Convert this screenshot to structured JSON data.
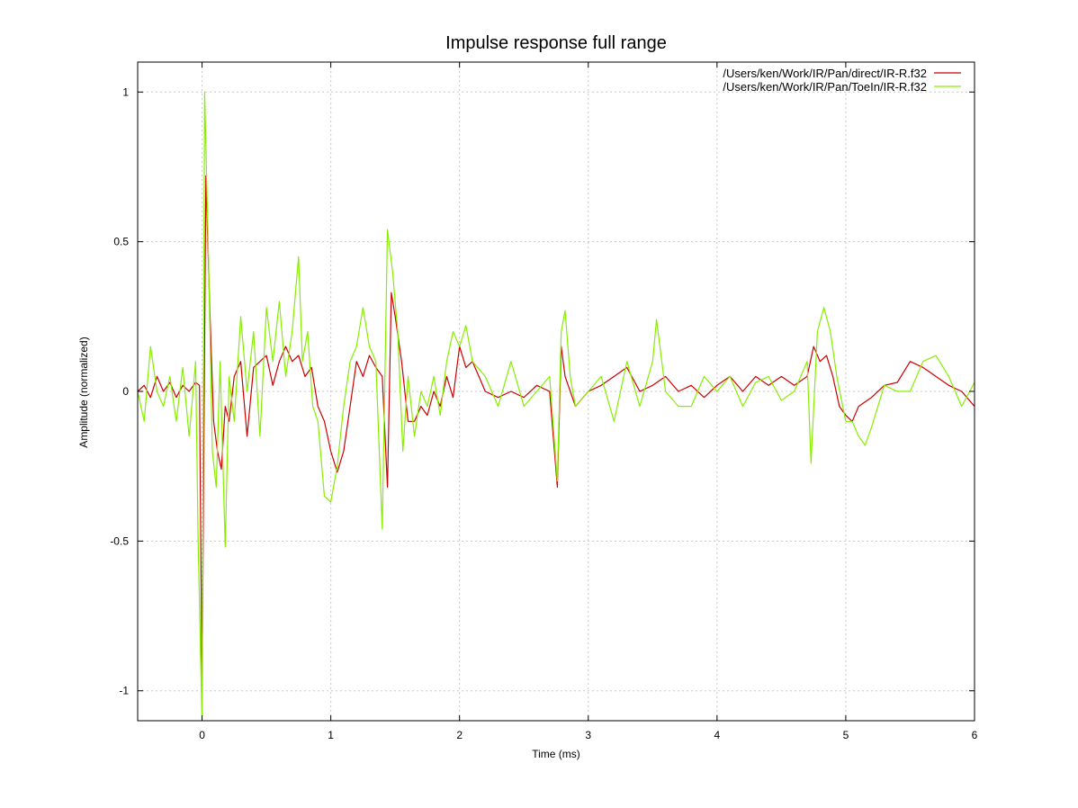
{
  "chart_data": {
    "type": "line",
    "title": "Impulse response full range",
    "xlabel": "Time (ms)",
    "ylabel": "Amplitude (normalized)",
    "xlim": [
      -0.5,
      6
    ],
    "ylim": [
      -1.1,
      1.1
    ],
    "grid": true,
    "legend_position": "top-right",
    "x_ticks": [
      0,
      1,
      2,
      3,
      4,
      5,
      6
    ],
    "y_ticks": [
      1,
      0.5,
      0,
      -0.5,
      -1
    ],
    "series": [
      {
        "name": "/Users/ken/Work/IR/Pan/direct/IR-R.f32",
        "color": "#cc0000",
        "x": [
          -0.5,
          -0.45,
          -0.4,
          -0.35,
          -0.3,
          -0.25,
          -0.2,
          -0.15,
          -0.1,
          -0.05,
          -0.02,
          0.0,
          0.03,
          0.06,
          0.09,
          0.12,
          0.15,
          0.18,
          0.21,
          0.25,
          0.3,
          0.35,
          0.4,
          0.45,
          0.5,
          0.55,
          0.6,
          0.65,
          0.7,
          0.75,
          0.8,
          0.85,
          0.9,
          0.95,
          1.0,
          1.05,
          1.1,
          1.15,
          1.2,
          1.25,
          1.3,
          1.35,
          1.4,
          1.44,
          1.47,
          1.5,
          1.55,
          1.6,
          1.65,
          1.7,
          1.75,
          1.8,
          1.85,
          1.9,
          1.95,
          2.0,
          2.05,
          2.1,
          2.15,
          2.2,
          2.3,
          2.4,
          2.5,
          2.6,
          2.7,
          2.76,
          2.79,
          2.82,
          2.9,
          3.0,
          3.1,
          3.2,
          3.3,
          3.4,
          3.5,
          3.6,
          3.7,
          3.8,
          3.9,
          4.0,
          4.1,
          4.2,
          4.3,
          4.4,
          4.5,
          4.6,
          4.7,
          4.75,
          4.8,
          4.85,
          4.9,
          4.95,
          5.0,
          5.05,
          5.1,
          5.2,
          5.3,
          5.4,
          5.5,
          5.6,
          5.7,
          5.8,
          5.9,
          6.0
        ],
        "y": [
          0.0,
          0.02,
          -0.02,
          0.05,
          0.0,
          0.03,
          -0.02,
          0.02,
          0.0,
          0.03,
          0.02,
          -1.0,
          0.72,
          0.28,
          -0.1,
          -0.2,
          -0.26,
          -0.05,
          -0.1,
          0.05,
          0.1,
          -0.15,
          0.08,
          0.1,
          0.12,
          0.02,
          0.1,
          0.15,
          0.1,
          0.12,
          0.05,
          0.08,
          -0.05,
          -0.1,
          -0.2,
          -0.27,
          -0.2,
          -0.05,
          0.1,
          0.05,
          0.12,
          0.08,
          0.05,
          -0.32,
          0.33,
          0.25,
          0.1,
          -0.1,
          -0.1,
          -0.05,
          -0.08,
          0.0,
          -0.05,
          0.05,
          -0.02,
          0.15,
          0.08,
          0.1,
          0.05,
          0.0,
          -0.02,
          0.0,
          -0.02,
          0.02,
          0.0,
          -0.32,
          0.15,
          0.05,
          -0.05,
          0.0,
          0.02,
          0.05,
          0.08,
          0.0,
          0.02,
          0.05,
          0.0,
          0.02,
          -0.02,
          0.02,
          0.05,
          0.0,
          0.05,
          0.02,
          0.05,
          0.02,
          0.05,
          0.15,
          0.1,
          0.12,
          0.05,
          -0.05,
          -0.08,
          -0.1,
          -0.05,
          -0.02,
          0.02,
          0.03,
          0.1,
          0.08,
          0.05,
          0.02,
          0.0,
          -0.05
        ]
      },
      {
        "name": "/Users/ken/Work/IR/Pan/ToeIn/IR-R.f32",
        "color": "#88ee00",
        "x": [
          -0.5,
          -0.45,
          -0.4,
          -0.35,
          -0.3,
          -0.25,
          -0.2,
          -0.15,
          -0.1,
          -0.05,
          -0.03,
          0.0,
          0.02,
          0.05,
          0.08,
          0.11,
          0.14,
          0.18,
          0.21,
          0.25,
          0.3,
          0.35,
          0.4,
          0.45,
          0.5,
          0.55,
          0.6,
          0.65,
          0.7,
          0.75,
          0.78,
          0.82,
          0.86,
          0.9,
          0.95,
          1.0,
          1.05,
          1.1,
          1.15,
          1.2,
          1.25,
          1.3,
          1.35,
          1.4,
          1.44,
          1.48,
          1.52,
          1.56,
          1.6,
          1.65,
          1.7,
          1.75,
          1.8,
          1.85,
          1.9,
          1.95,
          2.0,
          2.05,
          2.1,
          2.2,
          2.3,
          2.4,
          2.5,
          2.6,
          2.7,
          2.76,
          2.79,
          2.82,
          2.86,
          2.9,
          3.0,
          3.1,
          3.2,
          3.3,
          3.4,
          3.5,
          3.53,
          3.6,
          3.7,
          3.8,
          3.9,
          4.0,
          4.1,
          4.2,
          4.3,
          4.4,
          4.5,
          4.6,
          4.7,
          4.73,
          4.78,
          4.83,
          4.88,
          4.93,
          5.0,
          5.05,
          5.1,
          5.15,
          5.2,
          5.3,
          5.4,
          5.5,
          5.6,
          5.7,
          5.8,
          5.9,
          6.0
        ],
        "y": [
          0.0,
          -0.1,
          0.15,
          0.0,
          -0.05,
          0.05,
          -0.1,
          0.08,
          -0.15,
          0.1,
          -0.5,
          -1.1,
          1.0,
          0.45,
          -0.2,
          -0.32,
          0.1,
          -0.52,
          0.05,
          -0.1,
          0.25,
          0.0,
          0.2,
          -0.15,
          0.28,
          0.1,
          0.3,
          0.05,
          0.2,
          0.45,
          0.1,
          0.2,
          -0.05,
          -0.1,
          -0.35,
          -0.37,
          -0.25,
          -0.05,
          0.1,
          0.15,
          0.28,
          0.15,
          0.1,
          -0.46,
          0.54,
          0.4,
          0.2,
          -0.2,
          0.05,
          -0.15,
          0.0,
          -0.05,
          0.05,
          -0.08,
          0.1,
          0.2,
          0.15,
          0.22,
          0.1,
          0.05,
          -0.05,
          0.1,
          -0.05,
          0.0,
          0.05,
          -0.3,
          0.2,
          0.27,
          0.05,
          -0.05,
          0.0,
          0.05,
          -0.1,
          0.1,
          -0.05,
          0.1,
          0.24,
          0.0,
          -0.05,
          -0.05,
          0.05,
          0.0,
          0.05,
          -0.05,
          0.03,
          0.05,
          -0.03,
          0.0,
          0.1,
          -0.24,
          0.2,
          0.28,
          0.2,
          0.05,
          -0.1,
          -0.1,
          -0.15,
          -0.18,
          -0.12,
          0.02,
          0.0,
          0.0,
          0.1,
          0.12,
          0.05,
          -0.05,
          0.03
        ]
      }
    ]
  }
}
